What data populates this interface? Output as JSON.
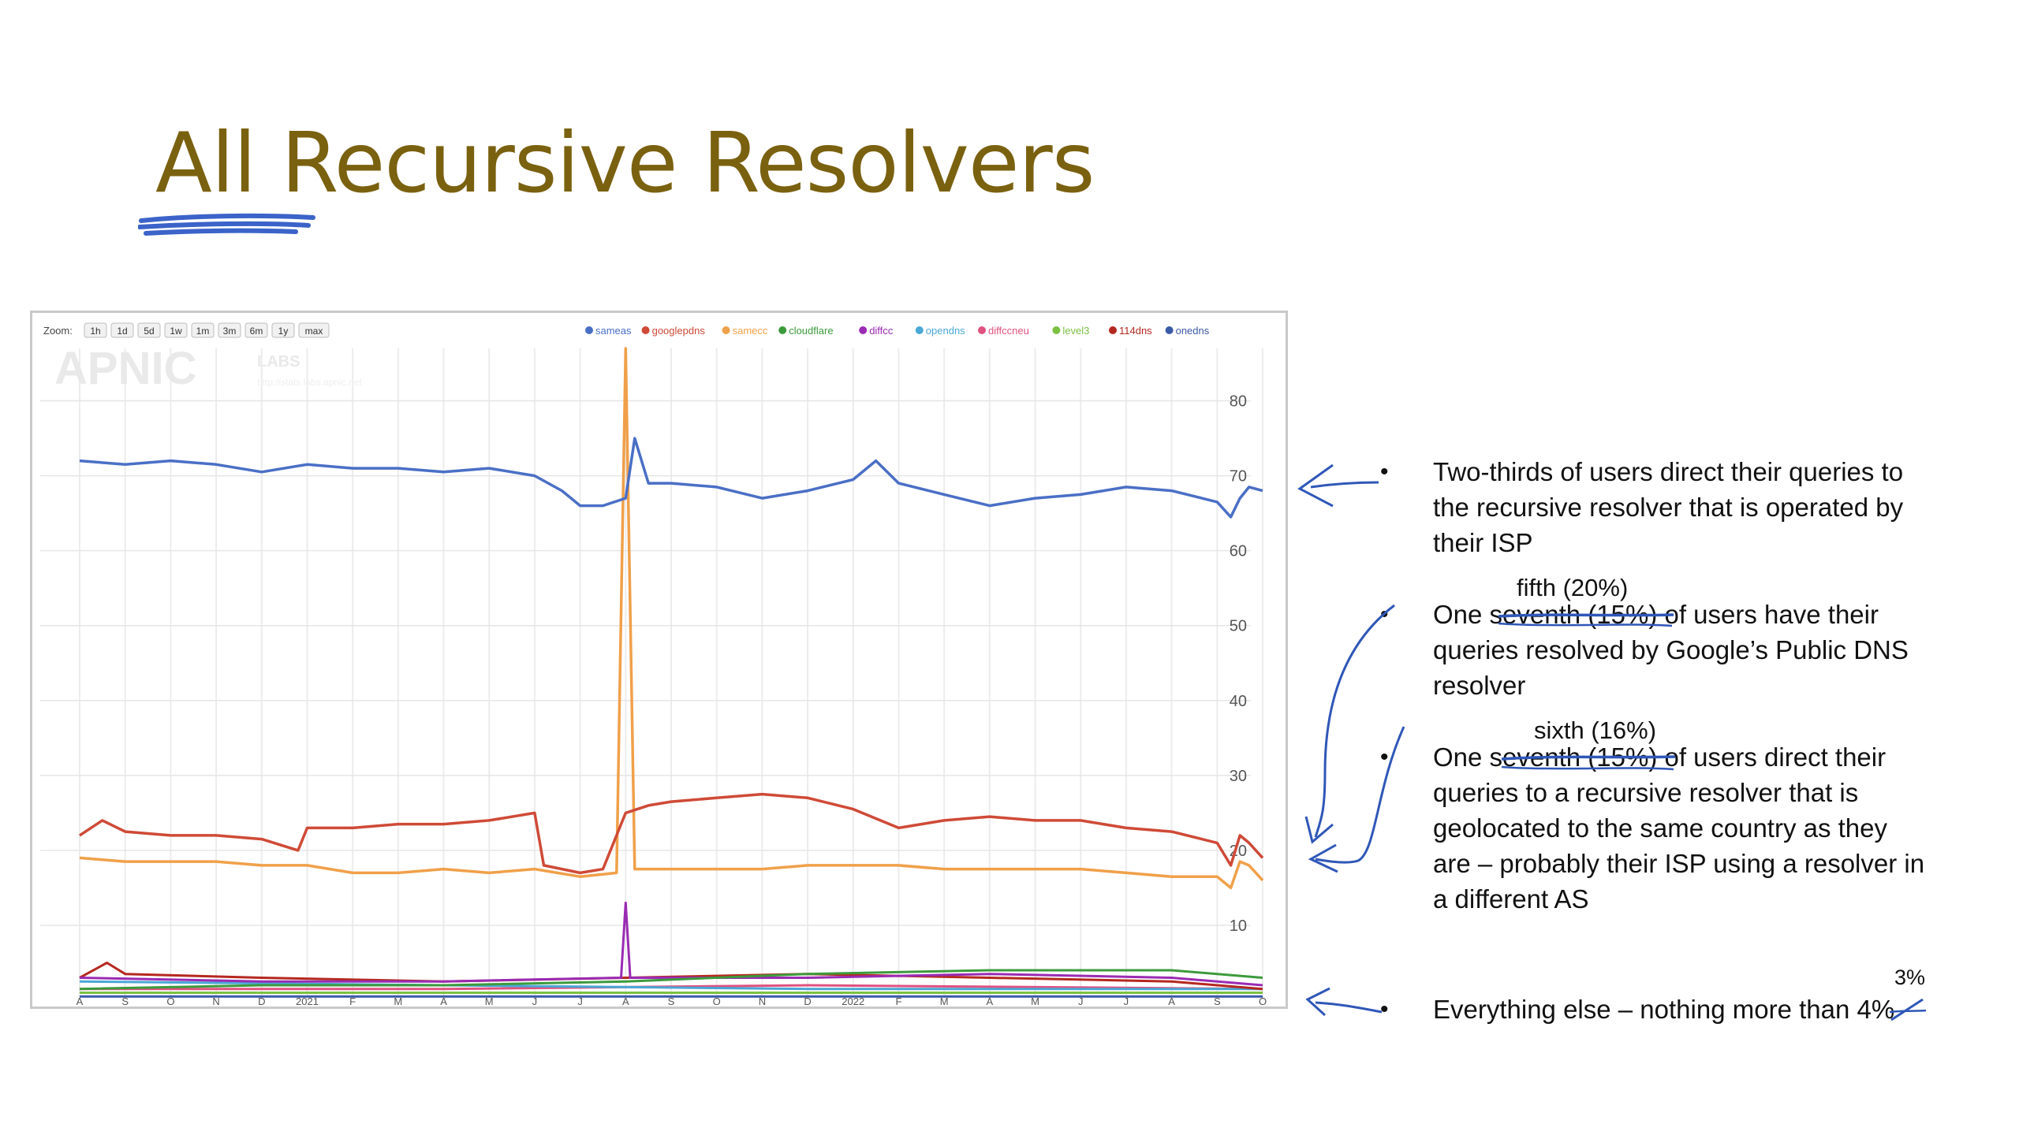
{
  "slide": {
    "title": "All Recursive Resolvers"
  },
  "colors": {
    "title": "#7a6110",
    "ink": "#2f57b8",
    "sameas": "#4a6fc6",
    "googlepdns": "#cf4a37",
    "samecc": "#f0a04a",
    "cloudflare": "#3c9a3c",
    "diffcc": "#9a2bb3",
    "opendns": "#4aa7d6",
    "diffccneu": "#e0527f",
    "level3": "#7bc043",
    "114dns": "#b5281f",
    "onedns": "#3b5ba8"
  },
  "chart_data": {
    "type": "line",
    "zoom_label": "Zoom:",
    "zoom_buttons": [
      "1h",
      "1d",
      "5d",
      "1w",
      "1m",
      "3m",
      "6m",
      "1y",
      "max"
    ],
    "watermark": "APNIC",
    "watermark_small": "LABS",
    "watermark_url": "http://stats.labs.apnic.net",
    "legend": [
      "sameas",
      "googlepdns",
      "samecc",
      "cloudflare",
      "diffcc",
      "opendns",
      "diffccneu",
      "level3",
      "114dns",
      "onedns"
    ],
    "x_ticks": [
      "A",
      "S",
      "O",
      "N",
      "D",
      "2021",
      "F",
      "M",
      "A",
      "M",
      "J",
      "J",
      "A",
      "S",
      "O",
      "N",
      "D",
      "2022",
      "F",
      "M",
      "A",
      "M",
      "J",
      "J",
      "A",
      "S",
      "O"
    ],
    "y_ticks": [
      10,
      20,
      30,
      40,
      50,
      60,
      70,
      80
    ],
    "ylim": [
      0,
      87
    ],
    "series": [
      {
        "name": "sameas",
        "x": [
          0,
          1,
          2,
          3,
          4,
          5,
          6,
          7,
          8,
          9,
          10,
          10.6,
          11,
          11.5,
          12,
          12.2,
          12.5,
          13,
          14,
          15,
          16,
          17,
          17.5,
          18,
          19,
          20,
          21,
          22,
          23,
          24,
          25,
          25.3,
          25.5,
          25.7,
          26
        ],
        "values": [
          72,
          71.5,
          72,
          71.5,
          70.5,
          71.5,
          71,
          71,
          70.5,
          71,
          70,
          68,
          66,
          66,
          67,
          75,
          69,
          69,
          68.5,
          67,
          68,
          69.5,
          72,
          69,
          67.5,
          66,
          67,
          67.5,
          68.5,
          68,
          66.5,
          64.5,
          67,
          68.5,
          68
        ]
      },
      {
        "name": "googlepdns",
        "x": [
          0,
          0.5,
          1,
          2,
          3,
          4,
          4.8,
          5,
          6,
          7,
          8,
          9,
          10,
          10.2,
          11,
          11.5,
          12,
          12.5,
          13,
          14,
          15,
          16,
          17,
          18,
          19,
          20,
          21,
          22,
          23,
          24,
          25,
          25.3,
          25.5,
          25.7,
          26
        ],
        "values": [
          22,
          24,
          22.5,
          22,
          22,
          21.5,
          20,
          23,
          23,
          23.5,
          23.5,
          24,
          25,
          18,
          17,
          17.5,
          25,
          26,
          26.5,
          27,
          27.5,
          27,
          25.5,
          23,
          24,
          24.5,
          24,
          24,
          23,
          22.5,
          21,
          18,
          22,
          21,
          19
        ]
      },
      {
        "name": "samecc",
        "x": [
          0,
          1,
          2,
          3,
          4,
          5,
          6,
          7,
          8,
          9,
          10,
          11,
          11.8,
          12,
          12.2,
          13,
          14,
          15,
          16,
          17,
          18,
          19,
          20,
          21,
          22,
          23,
          24,
          25,
          25.3,
          25.5,
          25.7,
          26
        ],
        "values": [
          19,
          18.5,
          18.5,
          18.5,
          18,
          18,
          17,
          17,
          17.5,
          17,
          17.5,
          16.5,
          17,
          87,
          17.5,
          17.5,
          17.5,
          17.5,
          18,
          18,
          18,
          17.5,
          17.5,
          17.5,
          17.5,
          17,
          16.5,
          16.5,
          15,
          18.5,
          18,
          16
        ]
      },
      {
        "name": "cloudflare",
        "x": [
          0,
          4,
          8,
          12,
          16,
          20,
          24,
          26
        ],
        "values": [
          1.5,
          2,
          2,
          2.5,
          3.5,
          4,
          4,
          3
        ]
      },
      {
        "name": "diffcc",
        "x": [
          0,
          4,
          8,
          11.9,
          12,
          12.1,
          16,
          20,
          24,
          26
        ],
        "values": [
          3,
          2.5,
          2.5,
          3,
          13,
          3,
          3,
          3.5,
          3,
          2
        ]
      },
      {
        "name": "opendns",
        "x": [
          0,
          8,
          16,
          26
        ],
        "values": [
          2.5,
          2,
          1.5,
          1.5
        ]
      },
      {
        "name": "diffccneu",
        "x": [
          0,
          8,
          16,
          26
        ],
        "values": [
          1.5,
          1.5,
          2,
          1.5
        ]
      },
      {
        "name": "level3",
        "x": [
          0,
          8,
          16,
          26
        ],
        "values": [
          1,
          1,
          1,
          1
        ]
      },
      {
        "name": "114dns",
        "x": [
          0,
          0.6,
          1,
          4,
          8,
          12,
          16,
          20,
          24,
          26
        ],
        "values": [
          3,
          5,
          3.5,
          3,
          2.5,
          3,
          3.5,
          3,
          2.5,
          1.5
        ]
      },
      {
        "name": "onedns",
        "x": [
          0,
          8,
          16,
          26
        ],
        "values": [
          0.5,
          0.5,
          0.5,
          0.5
        ]
      }
    ]
  },
  "bullets": [
    {
      "line1": "Two-thirds of users direct their queries to",
      "line2": "the recursive resolver that is operated by",
      "line3": "their ISP"
    },
    {
      "prefix": "One ",
      "struck": "seventh (15%)",
      "suffix": " of users have their",
      "line2": "queries resolved by Google’s Public DNS",
      "line3": "resolver"
    },
    {
      "prefix": "One ",
      "struck": "seventh (15%)",
      "suffix": " of users direct their",
      "line2": "queries to a recursive resolver that is",
      "line3": "geolocated to the same country as they",
      "line4": "are – probably their ISP using a resolver in",
      "line5": "a different AS"
    },
    {
      "prefix": "Everything else – nothing more than ",
      "struck": "4%"
    }
  ],
  "annotations": {
    "fifth": "fifth  (20%)",
    "sixth": "sixth  (16%)",
    "three_pct": "3%"
  }
}
